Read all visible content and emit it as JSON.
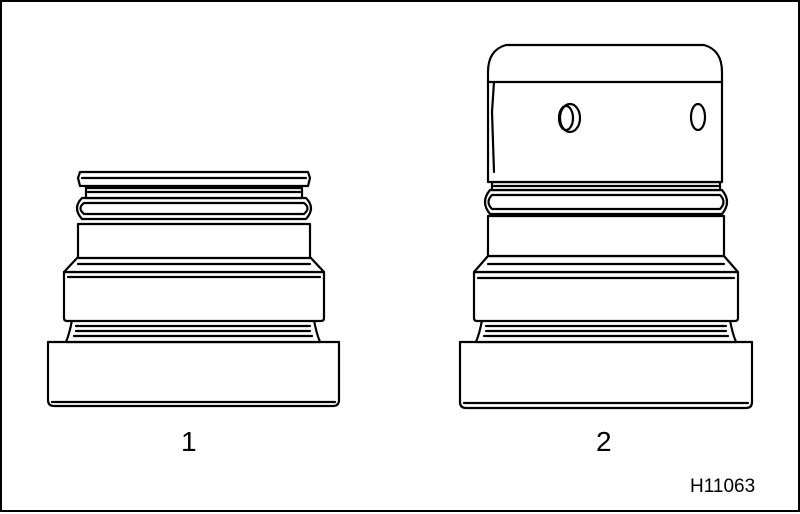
{
  "figure": {
    "parts": [
      {
        "label": "1"
      },
      {
        "label": "2"
      }
    ],
    "reference_code": "H11063"
  },
  "colors": {
    "line": "#000000",
    "background": "#ffffff"
  }
}
